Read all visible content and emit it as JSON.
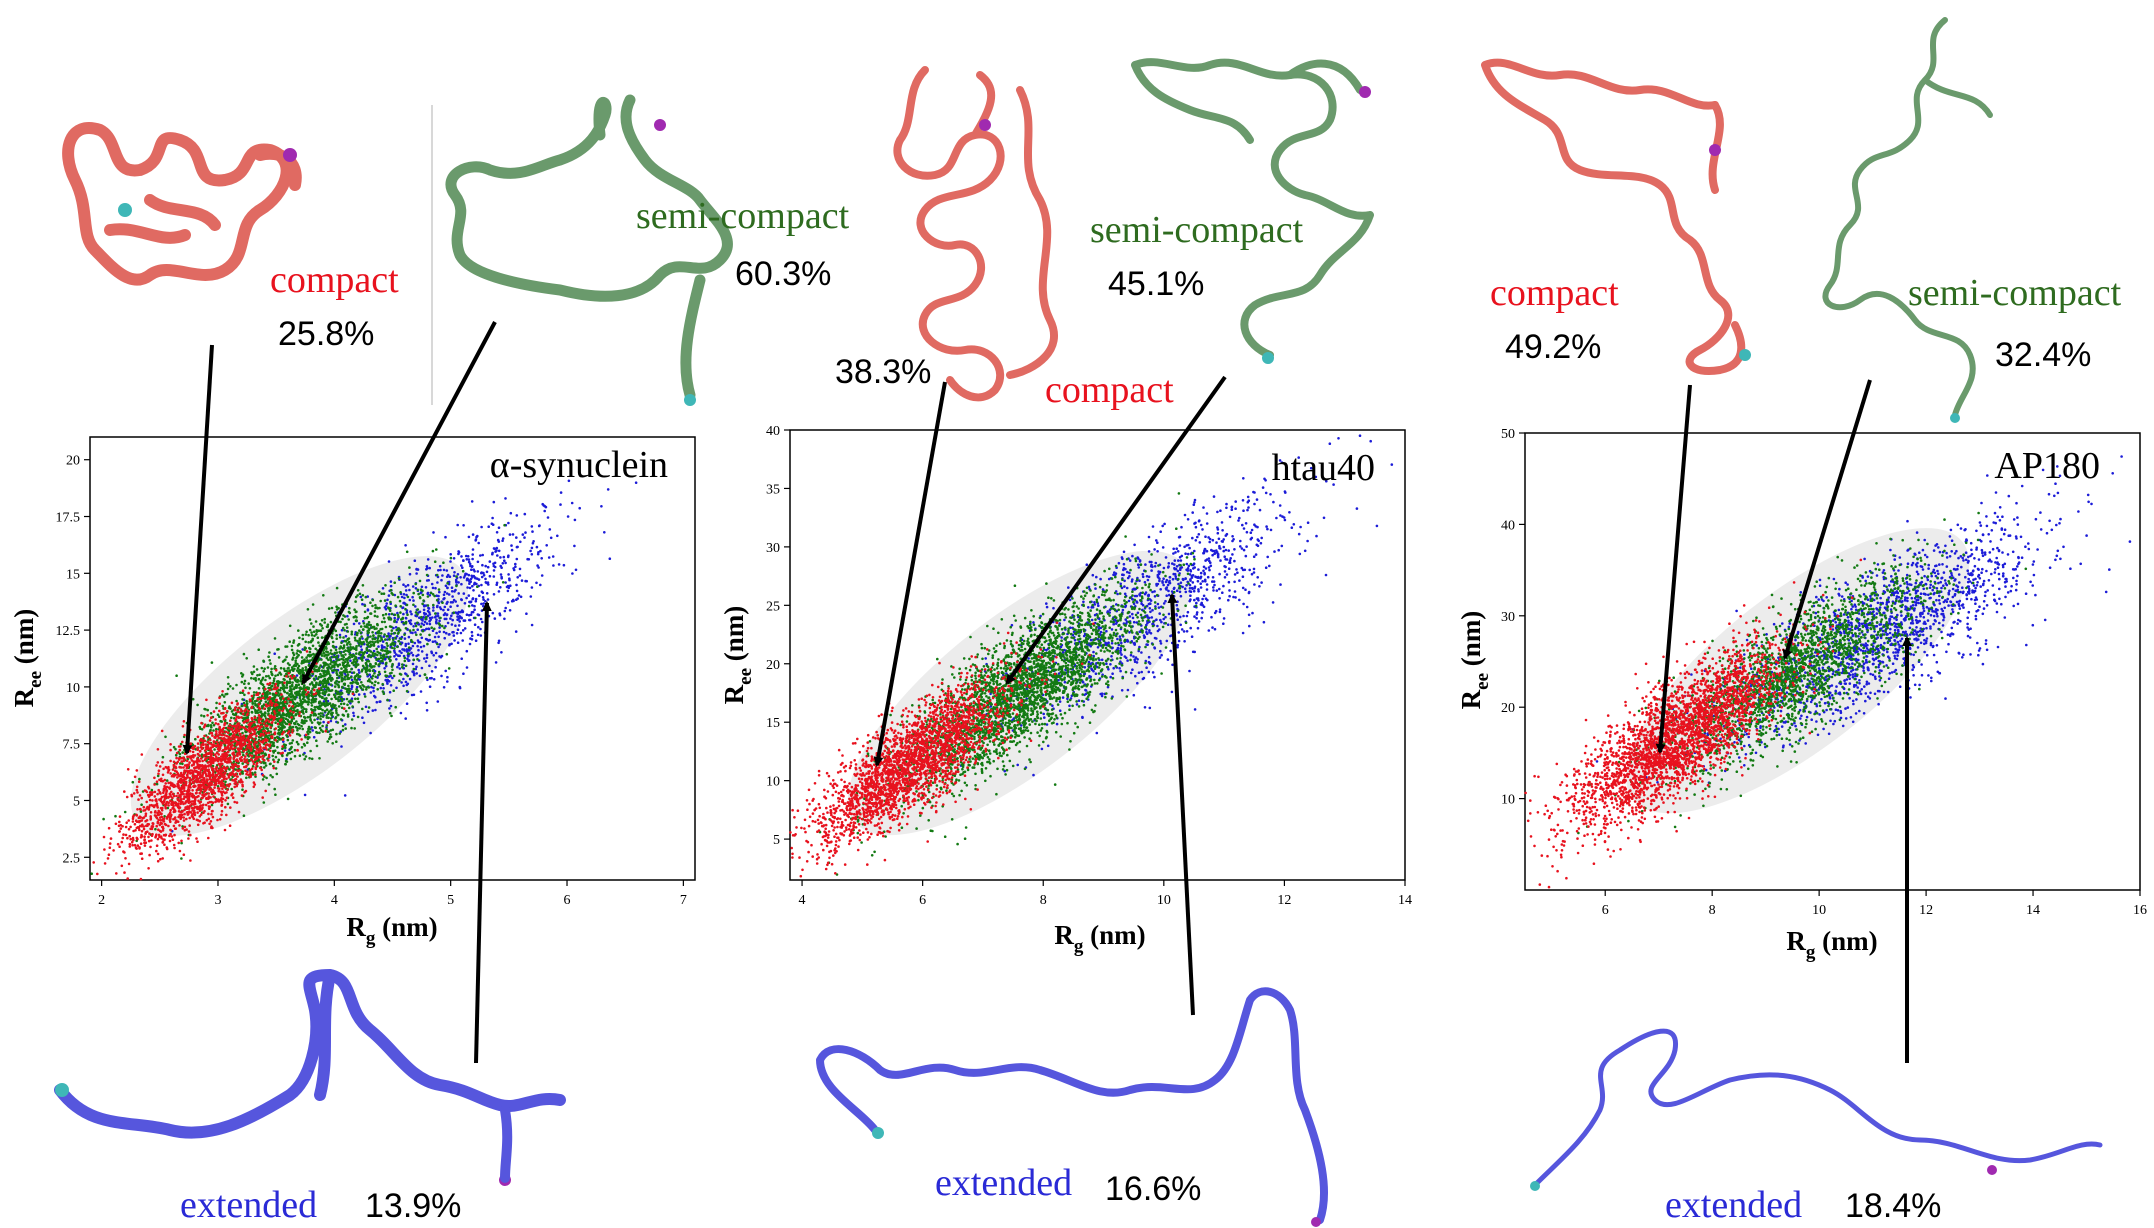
{
  "colors": {
    "compact": "#e8121e",
    "semi_compact": "#137a13",
    "extended": "#1c1cd8",
    "compact_label": "#e8121e",
    "semi_compact_label": "#2e6b1f",
    "extended_label": "#2a2ad6",
    "compact_tube": "#e06a62",
    "semi_compact_tube": "#6a9a6c",
    "extended_tube": "#5656dd",
    "side_chain": "#e09a3a"
  },
  "labels": {
    "compact": "compact",
    "semi_compact": "semi-compact",
    "extended": "extended"
  },
  "panels": [
    {
      "id": "asyn",
      "title": "α-synuclein",
      "compact_pct": "25.8%",
      "semi_compact_pct": "60.3%",
      "extended_pct": "13.9%"
    },
    {
      "id": "htau",
      "title": "htau40",
      "compact_pct": "38.3%",
      "semi_compact_pct": "45.1%",
      "extended_pct": "16.6%"
    },
    {
      "id": "ap180",
      "title": "AP180",
      "compact_pct": "49.2%",
      "semi_compact_pct": "32.4%",
      "extended_pct": "18.4%"
    }
  ],
  "chart_data": [
    {
      "type": "scatter",
      "title": "α-synuclein",
      "xlabel": "Rg (nm)",
      "ylabel": "Ree (nm)",
      "xlim": [
        1.9,
        7.1
      ],
      "ylim": [
        1.5,
        21.0
      ],
      "xticks": [
        2,
        3,
        4,
        5,
        6,
        7
      ],
      "yticks": [
        2.5,
        5.0,
        7.5,
        10.0,
        12.5,
        15.0,
        17.5,
        20.0
      ],
      "series": [
        {
          "name": "compact",
          "color": "#e8121e",
          "center": [
            2.9,
            6.2
          ],
          "spread": [
            0.35,
            1.7
          ],
          "points": 1800
        },
        {
          "name": "semi-compact",
          "color": "#137a13",
          "center": [
            3.7,
            9.6
          ],
          "spread": [
            0.5,
            2.1
          ],
          "points": 2600
        },
        {
          "name": "extended",
          "color": "#1c1cd8",
          "center": [
            4.8,
            12.8
          ],
          "spread": [
            0.55,
            2.4
          ],
          "points": 1000
        }
      ]
    },
    {
      "type": "scatter",
      "title": "htau40",
      "xlabel": "Rg (nm)",
      "ylabel": "Ree (nm)",
      "xlim": [
        3.8,
        14.0
      ],
      "ylim": [
        1.5,
        40.0
      ],
      "xticks": [
        4,
        6,
        8,
        10,
        12,
        14
      ],
      "yticks": [
        5,
        10,
        15,
        20,
        25,
        30,
        35,
        40
      ],
      "series": [
        {
          "name": "compact",
          "color": "#e8121e",
          "center": [
            5.8,
            11.5
          ],
          "spread": [
            0.8,
            3.5
          ],
          "points": 2400
        },
        {
          "name": "semi-compact",
          "color": "#137a13",
          "center": [
            7.6,
            17.5
          ],
          "spread": [
            1.0,
            4.2
          ],
          "points": 2800
        },
        {
          "name": "extended",
          "color": "#1c1cd8",
          "center": [
            9.8,
            25.0
          ],
          "spread": [
            1.2,
            4.8
          ],
          "points": 1100
        }
      ]
    },
    {
      "type": "scatter",
      "title": "AP180",
      "xlabel": "Rg (nm)",
      "ylabel": "Ree (nm)",
      "xlim": [
        4.5,
        16.0
      ],
      "ylim": [
        0.0,
        50.0
      ],
      "xticks": [
        6,
        8,
        10,
        12,
        14,
        16
      ],
      "yticks": [
        10,
        20,
        30,
        40,
        50
      ],
      "series": [
        {
          "name": "compact",
          "color": "#e8121e",
          "center": [
            7.3,
            16.5
          ],
          "spread": [
            1.0,
            5.0
          ],
          "points": 2800
        },
        {
          "name": "semi-compact",
          "color": "#137a13",
          "center": [
            9.6,
            24.0
          ],
          "spread": [
            1.2,
            5.4
          ],
          "points": 2000
        },
        {
          "name": "extended",
          "color": "#1c1cd8",
          "center": [
            11.2,
            28.5
          ],
          "spread": [
            1.5,
            5.8
          ],
          "points": 1600
        }
      ]
    }
  ]
}
